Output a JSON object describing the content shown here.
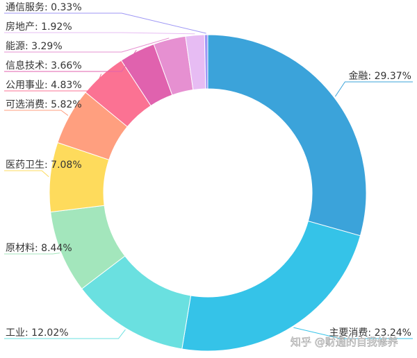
{
  "chart_data": {
    "type": "pie",
    "variant": "donut",
    "start": "12-o-clock",
    "direction": "clockwise",
    "legend": "none",
    "slices": [
      {
        "label": "金融",
        "value": 29.37,
        "color": "#3ba3da"
      },
      {
        "label": "主要消费",
        "value": 23.24,
        "color": "#35c3e8"
      },
      {
        "label": "工业",
        "value": 12.02,
        "color": "#6ae0e0"
      },
      {
        "label": "原材料",
        "value": 8.44,
        "color": "#a3e6bc"
      },
      {
        "label": "医药卫生",
        "value": 7.08,
        "color": "#fedb5c"
      },
      {
        "label": "可选消费",
        "value": 5.82,
        "color": "#ff9f7f"
      },
      {
        "label": "公用事业",
        "value": 4.83,
        "color": "#fb7293"
      },
      {
        "label": "信息技术",
        "value": 3.66,
        "color": "#e062ae"
      },
      {
        "label": "能源",
        "value": 3.29,
        "color": "#e690d1"
      },
      {
        "label": "房地产",
        "value": 1.92,
        "color": "#e7bcf3"
      },
      {
        "label": "通信服务",
        "value": 0.33,
        "color": "#9d96f5"
      }
    ]
  },
  "watermark": "知乎 @财通的自我修养"
}
